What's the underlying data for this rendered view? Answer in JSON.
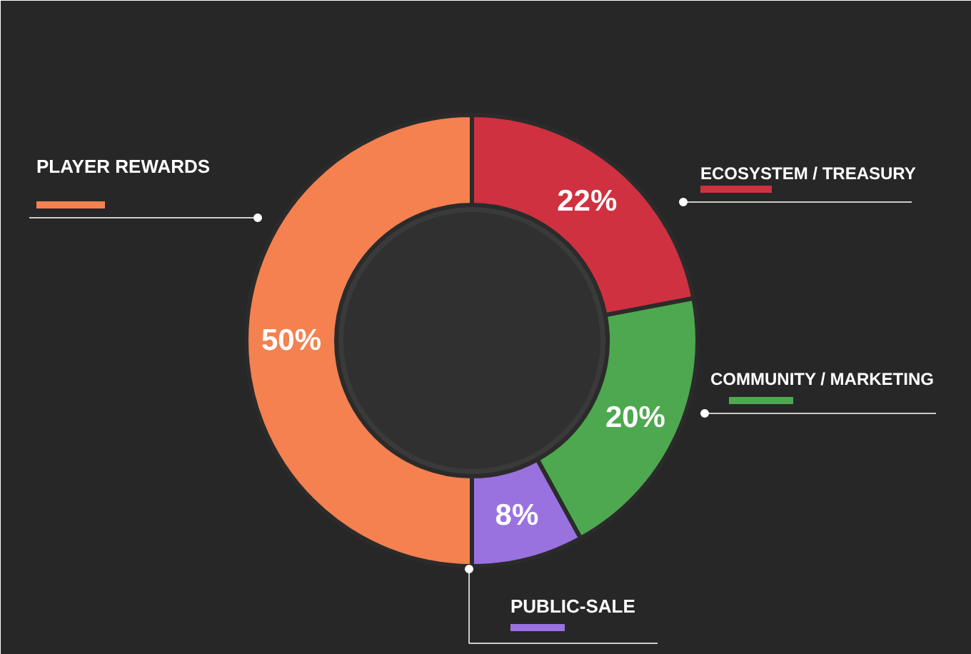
{
  "chart_data": {
    "type": "donut",
    "categories": [
      "ECOSYSTEM / TREASURY",
      "COMMUNITY / MARKETING",
      "PUBLIC-SALE",
      "PLAYER REWARDS"
    ],
    "values": [
      22,
      20,
      8,
      50
    ],
    "colors": [
      "#cf3140",
      "#4ea84f",
      "#9a72e0",
      "#f4814f"
    ],
    "value_labels": [
      "22%",
      "20%",
      "8%",
      "50%"
    ]
  }
}
